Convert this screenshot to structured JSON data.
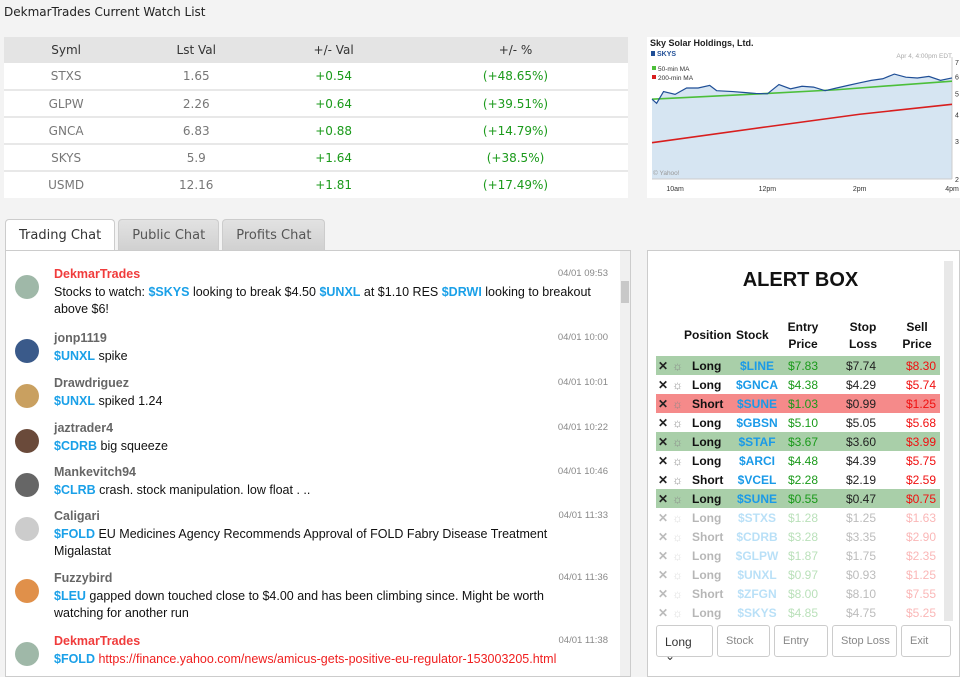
{
  "title": "DekmarTrades Current Watch List",
  "watchlist": {
    "headers": [
      "Syml",
      "Lst Val",
      "+/- Val",
      "+/- %"
    ],
    "rows": [
      [
        "STXS",
        "1.65",
        "+0.54",
        "(+48.65%)"
      ],
      [
        "GLPW",
        "2.26",
        "+0.64",
        "(+39.51%)"
      ],
      [
        "GNCA",
        "6.83",
        "+0.88",
        "(+14.79%)"
      ],
      [
        "SKYS",
        "5.9",
        "+1.64",
        "(+38.5%)"
      ],
      [
        "USMD",
        "12.16",
        "+1.81",
        "(+17.49%)"
      ]
    ]
  },
  "chart_data": {
    "type": "line",
    "title": "Sky Solar Holdings, Ltd.",
    "symbol": "SKYS",
    "timestamp": "Apr 4, 4:00pm EDT",
    "credit": "© Yahoo!",
    "x_ticks": [
      "10am",
      "12pm",
      "2pm",
      "4pm"
    ],
    "y_ticks": [
      "2",
      "3",
      "4",
      "5",
      "6",
      "7"
    ],
    "ylim": [
      2,
      7
    ],
    "x_range_hours": [
      9.5,
      16
    ],
    "series": [
      {
        "name": "SKYS",
        "color": "#1f4e96",
        "x": [
          9.5,
          9.6,
          9.75,
          10,
          10.25,
          10.5,
          10.75,
          10.9,
          11.25,
          11.5,
          11.75,
          12,
          12.25,
          12.5,
          12.75,
          13,
          13.25,
          13.5,
          13.75,
          14,
          14.25,
          14.5,
          14.75,
          15,
          15.25,
          15.5,
          15.75,
          16
        ],
        "y": [
          4.7,
          4.5,
          5.1,
          4.95,
          5.3,
          5.3,
          5.45,
          5.15,
          5.1,
          5.05,
          5.0,
          4.98,
          5.5,
          5.25,
          5.4,
          5.35,
          5.15,
          5.3,
          5.45,
          5.6,
          5.75,
          5.85,
          6.15,
          5.95,
          5.9,
          6.0,
          5.75,
          5.9
        ]
      },
      {
        "name": "50-min MA",
        "color": "#4cbf3a",
        "x": [
          9.5,
          12,
          13.5,
          15,
          16
        ],
        "y": [
          4.7,
          5.0,
          5.2,
          5.5,
          5.7
        ]
      },
      {
        "name": "200-min MA",
        "color": "#d81e1e",
        "x": [
          9.5,
          12,
          14,
          16
        ],
        "y": [
          2.95,
          3.5,
          4.0,
          4.45
        ]
      }
    ]
  },
  "tabs": [
    "Trading Chat",
    "Public Chat",
    "Profits Chat"
  ],
  "chat": [
    {
      "user": "DekmarTrades",
      "admin": true,
      "time": "04/01 09:53",
      "parts": [
        [
          "t",
          "Stocks to watch: "
        ],
        [
          "k",
          "$SKYS"
        ],
        [
          "t",
          " looking to break $4.50 "
        ],
        [
          "k",
          "$UNXL"
        ],
        [
          "t",
          " at $1.10 RES "
        ],
        [
          "k",
          "$DRWI"
        ],
        [
          "t",
          " looking to breakout above $6!"
        ]
      ]
    },
    {
      "user": "jonp1119",
      "time": "04/01 10:00",
      "parts": [
        [
          "k",
          "$UNXL"
        ],
        [
          "t",
          " spike"
        ]
      ]
    },
    {
      "user": "Drawdriguez",
      "time": "04/01 10:01",
      "parts": [
        [
          "k",
          "$UNXL"
        ],
        [
          "t",
          " spiked 1.24"
        ]
      ]
    },
    {
      "user": "jaztrader4",
      "time": "04/01 10:22",
      "parts": [
        [
          "k",
          "$CDRB"
        ],
        [
          "t",
          " big squeeze"
        ]
      ]
    },
    {
      "user": "Mankevitch94",
      "time": "04/01 10:46",
      "parts": [
        [
          "k",
          "$CLRB"
        ],
        [
          "t",
          " crash. stock manipulation. low float . .."
        ]
      ]
    },
    {
      "user": "Caligari",
      "time": "04/01 11:33",
      "parts": [
        [
          "k",
          "$FOLD"
        ],
        [
          "t",
          " EU Medicines Agency Recommends Approval of FOLD Fabry Disease Treatment Migalastat"
        ]
      ]
    },
    {
      "user": "Fuzzybird",
      "time": "04/01 11:36",
      "parts": [
        [
          "k",
          "$LEU"
        ],
        [
          "t",
          " gapped down touched close to $4.00 and has been climbing since. Might be worth watching for another run"
        ]
      ]
    },
    {
      "user": "DekmarTrades",
      "admin": true,
      "time": "04/01 11:38",
      "parts": [
        [
          "k",
          "$FOLD"
        ],
        [
          "t",
          " "
        ],
        [
          "l",
          "https://finance.yahoo.com/news/amicus-gets-positive-eu-regulator-153003205.html"
        ]
      ]
    }
  ],
  "alert": {
    "title": "ALERT BOX",
    "headers": {
      "position": "Position",
      "stock": "Stock",
      "entry": "Entry Price",
      "stop": "Stop Loss",
      "sell": "Sell Price"
    },
    "rows": [
      [
        "Long",
        "$LINE",
        "$7.83",
        "$7.74",
        "$8.30",
        "g",
        false
      ],
      [
        "Long",
        "$GNCA",
        "$4.38",
        "$4.29",
        "$5.74",
        "",
        false
      ],
      [
        "Short",
        "$SUNE",
        "$1.03",
        "$0.99",
        "$1.25",
        "r",
        false
      ],
      [
        "Long",
        "$GBSN",
        "$5.10",
        "$5.05",
        "$5.68",
        "",
        false
      ],
      [
        "Long",
        "$STAF",
        "$3.67",
        "$3.60",
        "$3.99",
        "g",
        false
      ],
      [
        "Long",
        "$ARCI",
        "$4.48",
        "$4.39",
        "$5.75",
        "",
        false
      ],
      [
        "Short",
        "$VCEL",
        "$2.28",
        "$2.19",
        "$2.59",
        "",
        false
      ],
      [
        "Long",
        "$SUNE",
        "$0.55",
        "$0.47",
        "$0.75",
        "g",
        false
      ],
      [
        "Long",
        "$STXS",
        "$1.28",
        "$1.25",
        "$1.63",
        "",
        true
      ],
      [
        "Short",
        "$CDRB",
        "$3.28",
        "$3.35",
        "$2.90",
        "",
        true
      ],
      [
        "Long",
        "$GLPW",
        "$1.87",
        "$1.75",
        "$2.35",
        "",
        true
      ],
      [
        "Long",
        "$UNXL",
        "$0.97",
        "$0.93",
        "$1.25",
        "",
        true
      ],
      [
        "Short",
        "$ZFGN",
        "$8.00",
        "$8.10",
        "$7.55",
        "",
        true
      ],
      [
        "Long",
        "$SKYS",
        "$4.85",
        "$4.75",
        "$5.25",
        "",
        true
      ]
    ],
    "form": {
      "position": "Long",
      "stock_ph": "Stock",
      "entry_ph": "Entry",
      "stop_ph": "Stop Loss",
      "exit_ph": "Exit"
    }
  }
}
